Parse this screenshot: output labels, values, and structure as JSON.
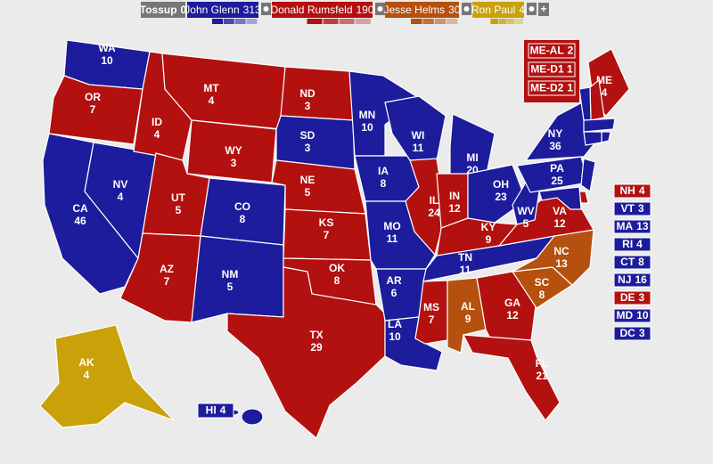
{
  "header": {
    "tossup": {
      "name": "Tossup",
      "votes": 0,
      "color": "#777777"
    },
    "candidates": [
      {
        "name": "John Glenn",
        "votes": 313,
        "color": "#1c1c9c"
      },
      {
        "name": "Donald Rumsfeld",
        "votes": 190,
        "color": "#b31010"
      },
      {
        "name": "Jesse Helms",
        "votes": 30,
        "color": "#b5500e"
      },
      {
        "name": "Ron Paul",
        "votes": 4,
        "color": "#c9a20a"
      }
    ],
    "add": "+"
  },
  "states": [
    {
      "abbr": "WA",
      "votes": 10,
      "party": 0
    },
    {
      "abbr": "OR",
      "votes": 7,
      "party": 1
    },
    {
      "abbr": "CA",
      "votes": 46,
      "party": 0
    },
    {
      "abbr": "NV",
      "votes": 4,
      "party": 0
    },
    {
      "abbr": "ID",
      "votes": 4,
      "party": 1
    },
    {
      "abbr": "MT",
      "votes": 4,
      "party": 1
    },
    {
      "abbr": "WY",
      "votes": 3,
      "party": 1
    },
    {
      "abbr": "UT",
      "votes": 5,
      "party": 1
    },
    {
      "abbr": "AZ",
      "votes": 7,
      "party": 1
    },
    {
      "abbr": "CO",
      "votes": 8,
      "party": 0
    },
    {
      "abbr": "NM",
      "votes": 5,
      "party": 0
    },
    {
      "abbr": "ND",
      "votes": 3,
      "party": 1
    },
    {
      "abbr": "SD",
      "votes": 3,
      "party": 0
    },
    {
      "abbr": "NE",
      "votes": 5,
      "party": 1
    },
    {
      "abbr": "KS",
      "votes": 7,
      "party": 1
    },
    {
      "abbr": "OK",
      "votes": 8,
      "party": 1
    },
    {
      "abbr": "TX",
      "votes": 29,
      "party": 1
    },
    {
      "abbr": "MN",
      "votes": 10,
      "party": 0
    },
    {
      "abbr": "IA",
      "votes": 8,
      "party": 0
    },
    {
      "abbr": "MO",
      "votes": 11,
      "party": 0
    },
    {
      "abbr": "AR",
      "votes": 6,
      "party": 0
    },
    {
      "abbr": "LA",
      "votes": 10,
      "party": 0
    },
    {
      "abbr": "WI",
      "votes": 11,
      "party": 0
    },
    {
      "abbr": "IL",
      "votes": 24,
      "party": 1
    },
    {
      "abbr": "MI",
      "votes": 20,
      "party": 0
    },
    {
      "abbr": "IN",
      "votes": 12,
      "party": 1
    },
    {
      "abbr": "OH",
      "votes": 23,
      "party": 0
    },
    {
      "abbr": "KY",
      "votes": 9,
      "party": 1
    },
    {
      "abbr": "TN",
      "votes": 11,
      "party": 0
    },
    {
      "abbr": "MS",
      "votes": 7,
      "party": 1
    },
    {
      "abbr": "AL",
      "votes": 9,
      "party": 2
    },
    {
      "abbr": "GA",
      "votes": 12,
      "party": 1
    },
    {
      "abbr": "FL",
      "votes": 21,
      "party": 1
    },
    {
      "abbr": "SC",
      "votes": 8,
      "party": 2
    },
    {
      "abbr": "NC",
      "votes": 13,
      "party": 2
    },
    {
      "abbr": "VA",
      "votes": 12,
      "party": 1
    },
    {
      "abbr": "WV",
      "votes": 5,
      "party": 0
    },
    {
      "abbr": "PA",
      "votes": 25,
      "party": 0
    },
    {
      "abbr": "NY",
      "votes": 36,
      "party": 0
    },
    {
      "abbr": "ME",
      "votes": 4,
      "party": 1
    },
    {
      "abbr": "AK",
      "votes": 4,
      "party": 3
    }
  ],
  "small_states": [
    {
      "abbr": "NH",
      "votes": 4,
      "party": 1
    },
    {
      "abbr": "VT",
      "votes": 3,
      "party": 0
    },
    {
      "abbr": "MA",
      "votes": 13,
      "party": 0
    },
    {
      "abbr": "RI",
      "votes": 4,
      "party": 0
    },
    {
      "abbr": "CT",
      "votes": 8,
      "party": 0
    },
    {
      "abbr": "NJ",
      "votes": 16,
      "party": 0
    },
    {
      "abbr": "DE",
      "votes": 3,
      "party": 1
    },
    {
      "abbr": "MD",
      "votes": 10,
      "party": 0
    },
    {
      "abbr": "DC",
      "votes": 3,
      "party": 0
    }
  ],
  "maine_districts": [
    {
      "abbr": "ME-AL",
      "votes": 2,
      "party": 1
    },
    {
      "abbr": "ME-D1",
      "votes": 1,
      "party": 1
    },
    {
      "abbr": "ME-D2",
      "votes": 1,
      "party": 1
    }
  ],
  "hawaii": {
    "abbr": "HI",
    "votes": 4,
    "party": 0
  }
}
